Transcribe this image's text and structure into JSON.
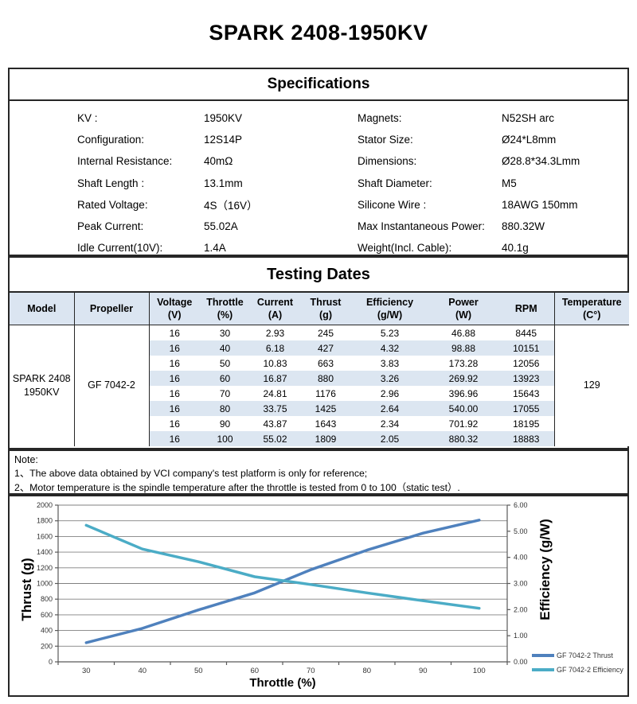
{
  "title": "SPARK 2408-1950KV",
  "colors": {
    "table_header_bg": "#DBE5F1",
    "row_stripe": "#DCE6F1",
    "thrust_line": "#4F81BD",
    "efficiency_line": "#4BACC6",
    "gridline": "#808080",
    "axis_line": "#595959"
  },
  "specifications": {
    "heading": "Specifications",
    "left": [
      {
        "label": "KV :",
        "value": "1950KV"
      },
      {
        "label": "Configuration:",
        "value": "12S14P"
      },
      {
        "label": "Internal Resistance:",
        "value": "40mΩ"
      },
      {
        "label": "Shaft Length :",
        "value": "13.1mm"
      },
      {
        "label": "Rated Voltage:",
        "value": "4S（16V）"
      },
      {
        "label": "Peak Current:",
        "value": "55.02A"
      },
      {
        "label": "Idle Current(10V):",
        "value": "1.4A"
      }
    ],
    "right": [
      {
        "label": "Magnets:",
        "value": "N52SH  arc"
      },
      {
        "label": "Stator Size:",
        "value": "Ø24*L8mm"
      },
      {
        "label": "Dimensions:",
        "value": "Ø28.8*34.3Lmm"
      },
      {
        "label": "Shaft Diameter:",
        "value": "M5"
      },
      {
        "label": "Silicone Wire :",
        "value": "18AWG 150mm"
      },
      {
        "label": "Max Instantaneous Power:",
        "value": "880.32W"
      },
      {
        "label": "Weight(Incl. Cable):",
        "value": "40.1g"
      }
    ]
  },
  "testing": {
    "heading": "Testing Dates",
    "headers": [
      {
        "l1": "Model",
        "l2": ""
      },
      {
        "l1": "Propeller",
        "l2": ""
      },
      {
        "l1": "Voltage",
        "l2": "(V)"
      },
      {
        "l1": "Throttle",
        "l2": "(%)"
      },
      {
        "l1": "Current",
        "l2": "(A)"
      },
      {
        "l1": "Thrust",
        "l2": "(g)"
      },
      {
        "l1": "Efficiency",
        "l2": "(g/W)"
      },
      {
        "l1": "Power",
        "l2": "(W)"
      },
      {
        "l1": "RPM",
        "l2": ""
      },
      {
        "l1": "Temperature",
        "l2": "(C°)"
      }
    ],
    "model_lines": [
      "SPARK 2408",
      "1950KV"
    ],
    "propeller": "GF 7042-2",
    "temperature": "129",
    "rows": [
      [
        "16",
        "30",
        "2.93",
        "245",
        "5.23",
        "46.88",
        "8445"
      ],
      [
        "16",
        "40",
        "6.18",
        "427",
        "4.32",
        "98.88",
        "10151"
      ],
      [
        "16",
        "50",
        "10.83",
        "663",
        "3.83",
        "173.28",
        "12056"
      ],
      [
        "16",
        "60",
        "16.87",
        "880",
        "3.26",
        "269.92",
        "13923"
      ],
      [
        "16",
        "70",
        "24.81",
        "1176",
        "2.96",
        "396.96",
        "15643"
      ],
      [
        "16",
        "80",
        "33.75",
        "1425",
        "2.64",
        "540.00",
        "17055"
      ],
      [
        "16",
        "90",
        "43.87",
        "1643",
        "2.34",
        "701.92",
        "18195"
      ],
      [
        "16",
        "100",
        "55.02",
        "1809",
        "2.05",
        "880.32",
        "18883"
      ]
    ]
  },
  "note": {
    "title": "Note:",
    "lines": [
      "1、The above data obtained by VCI company's test platform is only for reference;",
      "2、Motor temperature is the spindle temperature after the throttle is tested from 0 to 100（static test）."
    ]
  },
  "chart_data": {
    "type": "line",
    "x": [
      30,
      40,
      50,
      60,
      70,
      80,
      90,
      100
    ],
    "series": [
      {
        "name": "GF 7042-2 Thrust",
        "axis": "left",
        "color": "#4F81BD",
        "values": [
          245,
          427,
          663,
          880,
          1176,
          1425,
          1643,
          1809
        ]
      },
      {
        "name": "GF 7042-2 Efficiency",
        "axis": "right",
        "color": "#4BACC6",
        "values": [
          5.23,
          4.32,
          3.83,
          3.26,
          2.96,
          2.64,
          2.34,
          2.05
        ]
      }
    ],
    "xlabel": "Throttle (%)",
    "ylabel_left": "Thrust (g)",
    "ylabel_right": "Efficiency (g/W)",
    "left_axis": {
      "min": 0,
      "max": 2000,
      "step": 200
    },
    "right_axis": {
      "min": 0,
      "max": 6,
      "step": 1
    },
    "grid": true,
    "legend_position": "right-bottom"
  }
}
